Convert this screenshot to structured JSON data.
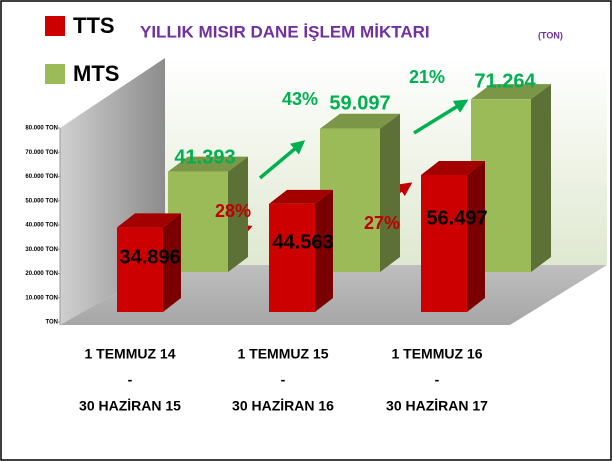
{
  "chart_data": {
    "type": "bar",
    "title": "YILLIK MISIR DANE İŞLEM MİKTARI",
    "title_unit": "(TON)",
    "categories": [
      [
        "1 TEMMUZ 14",
        "-",
        "30 HAZİRAN 15"
      ],
      [
        "1 TEMMUZ 15",
        "-",
        "30 HAZİRAN 16"
      ],
      [
        "1 TEMMUZ 16",
        "-",
        "30 HAZİRAN 17"
      ]
    ],
    "series": [
      {
        "name": "TTS",
        "color": "#cc0000",
        "values": [
          34896,
          44563,
          56497
        ],
        "value_labels": [
          "34.896",
          "44.563",
          "56.497"
        ]
      },
      {
        "name": "MTS",
        "color": "#9bbb59",
        "values": [
          41393,
          59097,
          71264
        ],
        "value_labels": [
          "41.393",
          "59.097",
          "71.264"
        ]
      }
    ],
    "annotations": [
      {
        "text": "28%",
        "color": "#c00000"
      },
      {
        "text": "43%",
        "color": "#00b050"
      },
      {
        "text": "27%",
        "color": "#c00000"
      },
      {
        "text": "21%",
        "color": "#00b050"
      }
    ],
    "ylim": [
      0,
      80000
    ],
    "yticks": [
      {
        "value": 0,
        "label": "TON"
      },
      {
        "value": 10000,
        "label": "10.000 TON"
      },
      {
        "value": 20000,
        "label": "20.000 TON"
      },
      {
        "value": 30000,
        "label": "30.000 TON"
      },
      {
        "value": 40000,
        "label": "40.000 TON"
      },
      {
        "value": 50000,
        "label": "50.000 TON"
      },
      {
        "value": 60000,
        "label": "60.000 TON"
      },
      {
        "value": 70000,
        "label": "70.000 TON"
      },
      {
        "value": 80000,
        "label": "80.000 TON"
      }
    ]
  }
}
